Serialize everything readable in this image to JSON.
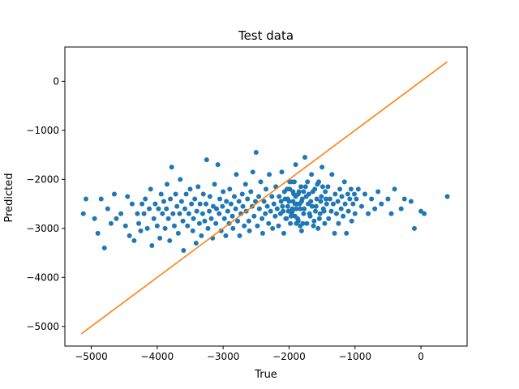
{
  "chart_data": {
    "type": "scatter",
    "title": "Test data",
    "xlabel": "True",
    "ylabel": "Predicted",
    "xlim": [
      -5400,
      700
    ],
    "ylim": [
      -5400,
      700
    ],
    "xticks": [
      -5000,
      -4000,
      -3000,
      -2000,
      -1000,
      0
    ],
    "yticks": [
      -5000,
      -4000,
      -3000,
      -2000,
      -1000,
      0
    ],
    "xtick_labels": [
      "−5000",
      "−4000",
      "−3000",
      "−2000",
      "−1000",
      "0"
    ],
    "ytick_labels": [
      "−5000",
      "−4000",
      "−3000",
      "−2000",
      "−1000",
      "0"
    ],
    "grid": false,
    "colors": {
      "scatter": "#1f77b4",
      "line": "#ff7f0e"
    },
    "series": [
      {
        "type": "scatter",
        "points": [
          [
            -5120,
            -2700
          ],
          [
            -5080,
            -2400
          ],
          [
            -4950,
            -2800
          ],
          [
            -4900,
            -3100
          ],
          [
            -4850,
            -2400
          ],
          [
            -4800,
            -3400
          ],
          [
            -4750,
            -2600
          ],
          [
            -4700,
            -2900
          ],
          [
            -4650,
            -2300
          ],
          [
            -4620,
            -2800
          ],
          [
            -4550,
            -2700
          ],
          [
            -4480,
            -2950
          ],
          [
            -4450,
            -2350
          ],
          [
            -4420,
            -3150
          ],
          [
            -4380,
            -2500
          ],
          [
            -4350,
            -3250
          ],
          [
            -4300,
            -2700
          ],
          [
            -4280,
            -2900
          ],
          [
            -4250,
            -3050
          ],
          [
            -4230,
            -2500
          ],
          [
            -4200,
            -2700
          ],
          [
            -4180,
            -2400
          ],
          [
            -4150,
            -3000
          ],
          [
            -4120,
            -2600
          ],
          [
            -4100,
            -2200
          ],
          [
            -4080,
            -3350
          ],
          [
            -4050,
            -2800
          ],
          [
            -4030,
            -2500
          ],
          [
            -4000,
            -2950
          ],
          [
            -3980,
            -2600
          ],
          [
            -3960,
            -3200
          ],
          [
            -3940,
            -2300
          ],
          [
            -3920,
            -2700
          ],
          [
            -3900,
            -2450
          ],
          [
            -3880,
            -3000
          ],
          [
            -3860,
            -2600
          ],
          [
            -3850,
            -2100
          ],
          [
            -3830,
            -2800
          ],
          [
            -3810,
            -3250
          ],
          [
            -3800,
            -2400
          ],
          [
            -3780,
            -1750
          ],
          [
            -3760,
            -2700
          ],
          [
            -3740,
            -2950
          ],
          [
            -3720,
            -2300
          ],
          [
            -3700,
            -2550
          ],
          [
            -3680,
            -3100
          ],
          [
            -3660,
            -2700
          ],
          [
            -3650,
            -2000
          ],
          [
            -3630,
            -2450
          ],
          [
            -3610,
            -2850
          ],
          [
            -3600,
            -3450
          ],
          [
            -3580,
            -2600
          ],
          [
            -3560,
            -2300
          ],
          [
            -3540,
            -2950
          ],
          [
            -3520,
            -2700
          ],
          [
            -3500,
            -2200
          ],
          [
            -3480,
            -2500
          ],
          [
            -3460,
            -3050
          ],
          [
            -3450,
            -2800
          ],
          [
            -3430,
            -2400
          ],
          [
            -3410,
            -3300
          ],
          [
            -3400,
            -2650
          ],
          [
            -3380,
            -2150
          ],
          [
            -3360,
            -2900
          ],
          [
            -3350,
            -2500
          ],
          [
            -3330,
            -3150
          ],
          [
            -3310,
            -2700
          ],
          [
            -3300,
            -2300
          ],
          [
            -3280,
            -2850
          ],
          [
            -3260,
            -2500
          ],
          [
            -3250,
            -1600
          ],
          [
            -3230,
            -3000
          ],
          [
            -3210,
            -2650
          ],
          [
            -3200,
            -2350
          ],
          [
            -3180,
            -2800
          ],
          [
            -3160,
            -3200
          ],
          [
            -3150,
            -2550
          ],
          [
            -3130,
            -2100
          ],
          [
            -3110,
            -2900
          ],
          [
            -3100,
            -2600
          ],
          [
            -3080,
            -1700
          ],
          [
            -3060,
            -2700
          ],
          [
            -3050,
            -2400
          ],
          [
            -3030,
            -3050
          ],
          [
            -3010,
            -2550
          ],
          [
            -3000,
            -2250
          ],
          [
            -2980,
            -2800
          ],
          [
            -2960,
            -3150
          ],
          [
            -2950,
            -2450
          ],
          [
            -2930,
            -2650
          ],
          [
            -2910,
            -2900
          ],
          [
            -2900,
            -2200
          ],
          [
            -2880,
            -2500
          ],
          [
            -2860,
            -2750
          ],
          [
            -2850,
            -3000
          ],
          [
            -2830,
            -2350
          ],
          [
            -2810,
            -2600
          ],
          [
            -2800,
            -1900
          ],
          [
            -2780,
            -2850
          ],
          [
            -2760,
            -2450
          ],
          [
            -2750,
            -3150
          ],
          [
            -2730,
            -2700
          ],
          [
            -2710,
            -2300
          ],
          [
            -2700,
            -2550
          ],
          [
            -2680,
            -2950
          ],
          [
            -2660,
            -2100
          ],
          [
            -2650,
            -2650
          ],
          [
            -2630,
            -2400
          ],
          [
            -2610,
            -2850
          ],
          [
            -2600,
            -3050
          ],
          [
            -2580,
            -2250
          ],
          [
            -2560,
            -2550
          ],
          [
            -2550,
            -1850
          ],
          [
            -2530,
            -2750
          ],
          [
            -2510,
            -2450
          ],
          [
            -2500,
            -1450
          ],
          [
            -2480,
            -2950
          ],
          [
            -2460,
            -2350
          ],
          [
            -2450,
            -2600
          ],
          [
            -2430,
            -2050
          ],
          [
            -2410,
            -2800
          ],
          [
            -2400,
            -3100
          ],
          [
            -2380,
            -2450
          ],
          [
            -2360,
            -2700
          ],
          [
            -2350,
            -2200
          ],
          [
            -2330,
            -2550
          ],
          [
            -2310,
            -2900
          ],
          [
            -2300,
            -1900
          ],
          [
            -2280,
            -2650
          ],
          [
            -2260,
            -2350
          ],
          [
            -2250,
            -3000
          ],
          [
            -2230,
            -2500
          ],
          [
            -2210,
            -2750
          ],
          [
            -2200,
            -2150
          ],
          [
            -2180,
            -2600
          ],
          [
            -2160,
            -2950
          ],
          [
            -2150,
            -2350
          ],
          [
            -2130,
            -2700
          ],
          [
            -2110,
            -1850
          ],
          [
            -2100,
            -2550
          ],
          [
            -2080,
            -3100
          ],
          [
            -2060,
            -2400
          ],
          [
            -2050,
            -2800
          ],
          [
            -2030,
            -2200
          ],
          [
            -2010,
            -2650
          ],
          [
            -2000,
            -2450
          ],
          [
            -1980,
            -2900
          ],
          [
            -1960,
            -2050
          ],
          [
            -1950,
            -2600
          ],
          [
            -1930,
            -2300
          ],
          [
            -1910,
            -2750
          ],
          [
            -1900,
            -1700
          ],
          [
            -1880,
            -2500
          ],
          [
            -1860,
            -2850
          ],
          [
            -1850,
            -2250
          ],
          [
            -1830,
            -2600
          ],
          [
            -1810,
            -3050
          ],
          [
            -1800,
            -2400
          ],
          [
            -1780,
            -2700
          ],
          [
            -1760,
            -1550
          ],
          [
            -1750,
            -2150
          ],
          [
            -1730,
            -2900
          ],
          [
            -1710,
            -2500
          ],
          [
            -1700,
            -2300
          ],
          [
            -1680,
            -2750
          ],
          [
            -1660,
            -1900
          ],
          [
            -1650,
            -2550
          ],
          [
            -1630,
            -2950
          ],
          [
            -1610,
            -2200
          ],
          [
            -1600,
            -2650
          ],
          [
            -1580,
            -2400
          ],
          [
            -1560,
            -3000
          ],
          [
            -1550,
            -2050
          ],
          [
            -1530,
            -2700
          ],
          [
            -1510,
            -2350
          ],
          [
            -1500,
            -1750
          ],
          [
            -1480,
            -2600
          ],
          [
            -1460,
            -2900
          ],
          [
            -1450,
            -2250
          ],
          [
            -1430,
            -2500
          ],
          [
            -1410,
            -2150
          ],
          [
            -1400,
            -2800
          ],
          [
            -1380,
            -2400
          ],
          [
            -1360,
            -2650
          ],
          [
            -1350,
            -1900
          ],
          [
            -1330,
            -2500
          ],
          [
            -1310,
            -3100
          ],
          [
            -1300,
            -2300
          ],
          [
            -1280,
            -2700
          ],
          [
            -1260,
            -2450
          ],
          [
            -1250,
            -2900
          ],
          [
            -1230,
            -2200
          ],
          [
            -1210,
            -2600
          ],
          [
            -1200,
            -2350
          ],
          [
            -1180,
            -2750
          ],
          [
            -1160,
            -2050
          ],
          [
            -1150,
            -2500
          ],
          [
            -1130,
            -3100
          ],
          [
            -1110,
            -2300
          ],
          [
            -1100,
            -2650
          ],
          [
            -1080,
            -2400
          ],
          [
            -1060,
            -2200
          ],
          [
            -1050,
            -2850
          ],
          [
            -1030,
            -2500
          ],
          [
            -1010,
            -2300
          ],
          [
            -1000,
            -2700
          ],
          [
            -980,
            -2400
          ],
          [
            -950,
            -2200
          ],
          [
            -900,
            -2550
          ],
          [
            -850,
            -2300
          ],
          [
            -800,
            -2700
          ],
          [
            -750,
            -2400
          ],
          [
            -700,
            -2600
          ],
          [
            -650,
            -2250
          ],
          [
            -600,
            -2500
          ],
          [
            -500,
            -2400
          ],
          [
            -450,
            -2700
          ],
          [
            -400,
            -2200
          ],
          [
            -300,
            -2600
          ],
          [
            -250,
            -2400
          ],
          [
            -150,
            -2450
          ],
          [
            -100,
            -3000
          ],
          [
            0,
            -2650
          ],
          [
            50,
            -2700
          ],
          [
            400,
            -2350
          ],
          [
            -1950,
            -2650
          ],
          [
            -1900,
            -2350
          ],
          [
            -1870,
            -2800
          ],
          [
            -1840,
            -2500
          ],
          [
            -1820,
            -2150
          ],
          [
            -1790,
            -2900
          ],
          [
            -1770,
            -2600
          ],
          [
            -1740,
            -2350
          ],
          [
            -1720,
            -2050
          ],
          [
            -1690,
            -2700
          ],
          [
            -1670,
            -2450
          ],
          [
            -1640,
            -2250
          ],
          [
            -1620,
            -2850
          ],
          [
            -1590,
            -2550
          ],
          [
            -1570,
            -2100
          ],
          [
            -1540,
            -2800
          ],
          [
            -1520,
            -2450
          ],
          [
            -1490,
            -2150
          ],
          [
            -1470,
            -2650
          ],
          [
            -1440,
            -2400
          ],
          [
            -2020,
            -2550
          ],
          [
            -1990,
            -2200
          ],
          [
            -1970,
            -2750
          ],
          [
            -1940,
            -2450
          ],
          [
            -1920,
            -2050
          ],
          [
            -1890,
            -2600
          ],
          [
            -1860,
            -2300
          ],
          [
            -1830,
            -2950
          ],
          [
            -1810,
            -2450
          ],
          [
            -1780,
            -2250
          ],
          [
            -2120,
            -2450
          ],
          [
            -2090,
            -2650
          ],
          [
            -2070,
            -2250
          ],
          [
            -2040,
            -2800
          ],
          [
            -2020,
            -2400
          ],
          [
            -1990,
            -2050
          ],
          [
            -1960,
            -2700
          ],
          [
            -1940,
            -2250
          ],
          [
            -1910,
            -2500
          ],
          [
            -1890,
            -2900
          ]
        ]
      },
      {
        "type": "line",
        "points": [
          [
            -5150,
            -5150
          ],
          [
            400,
            400
          ]
        ]
      }
    ]
  }
}
